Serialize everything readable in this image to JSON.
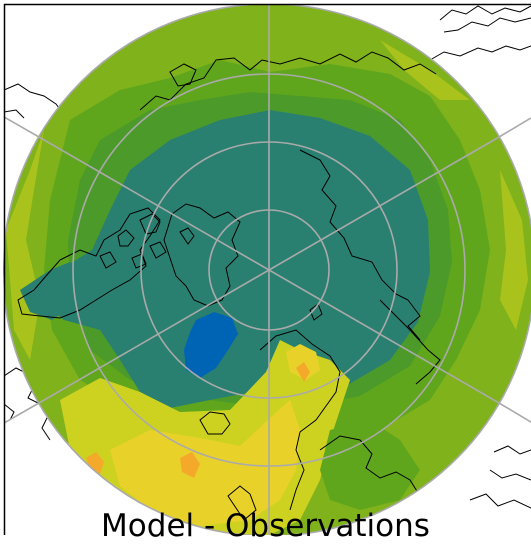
{
  "map": {
    "title": "Model - Observations",
    "projection": "north-polar-stereographic",
    "gridlines": true,
    "colors": {
      "background_outside": "#ffffff",
      "frame": "#000000",
      "gridline": "#aaaaaa",
      "coastline": "#000000",
      "level_lowest": "#0064b4",
      "level_1": "#2a8070",
      "level_2": "#4c9a2a",
      "level_3": "#5fa61c",
      "level_4": "#86b41a",
      "level_5": "#a9c21c",
      "level_6": "#cdd221",
      "level_7": "#e8d22a",
      "level_8": "#f4a92b"
    }
  }
}
